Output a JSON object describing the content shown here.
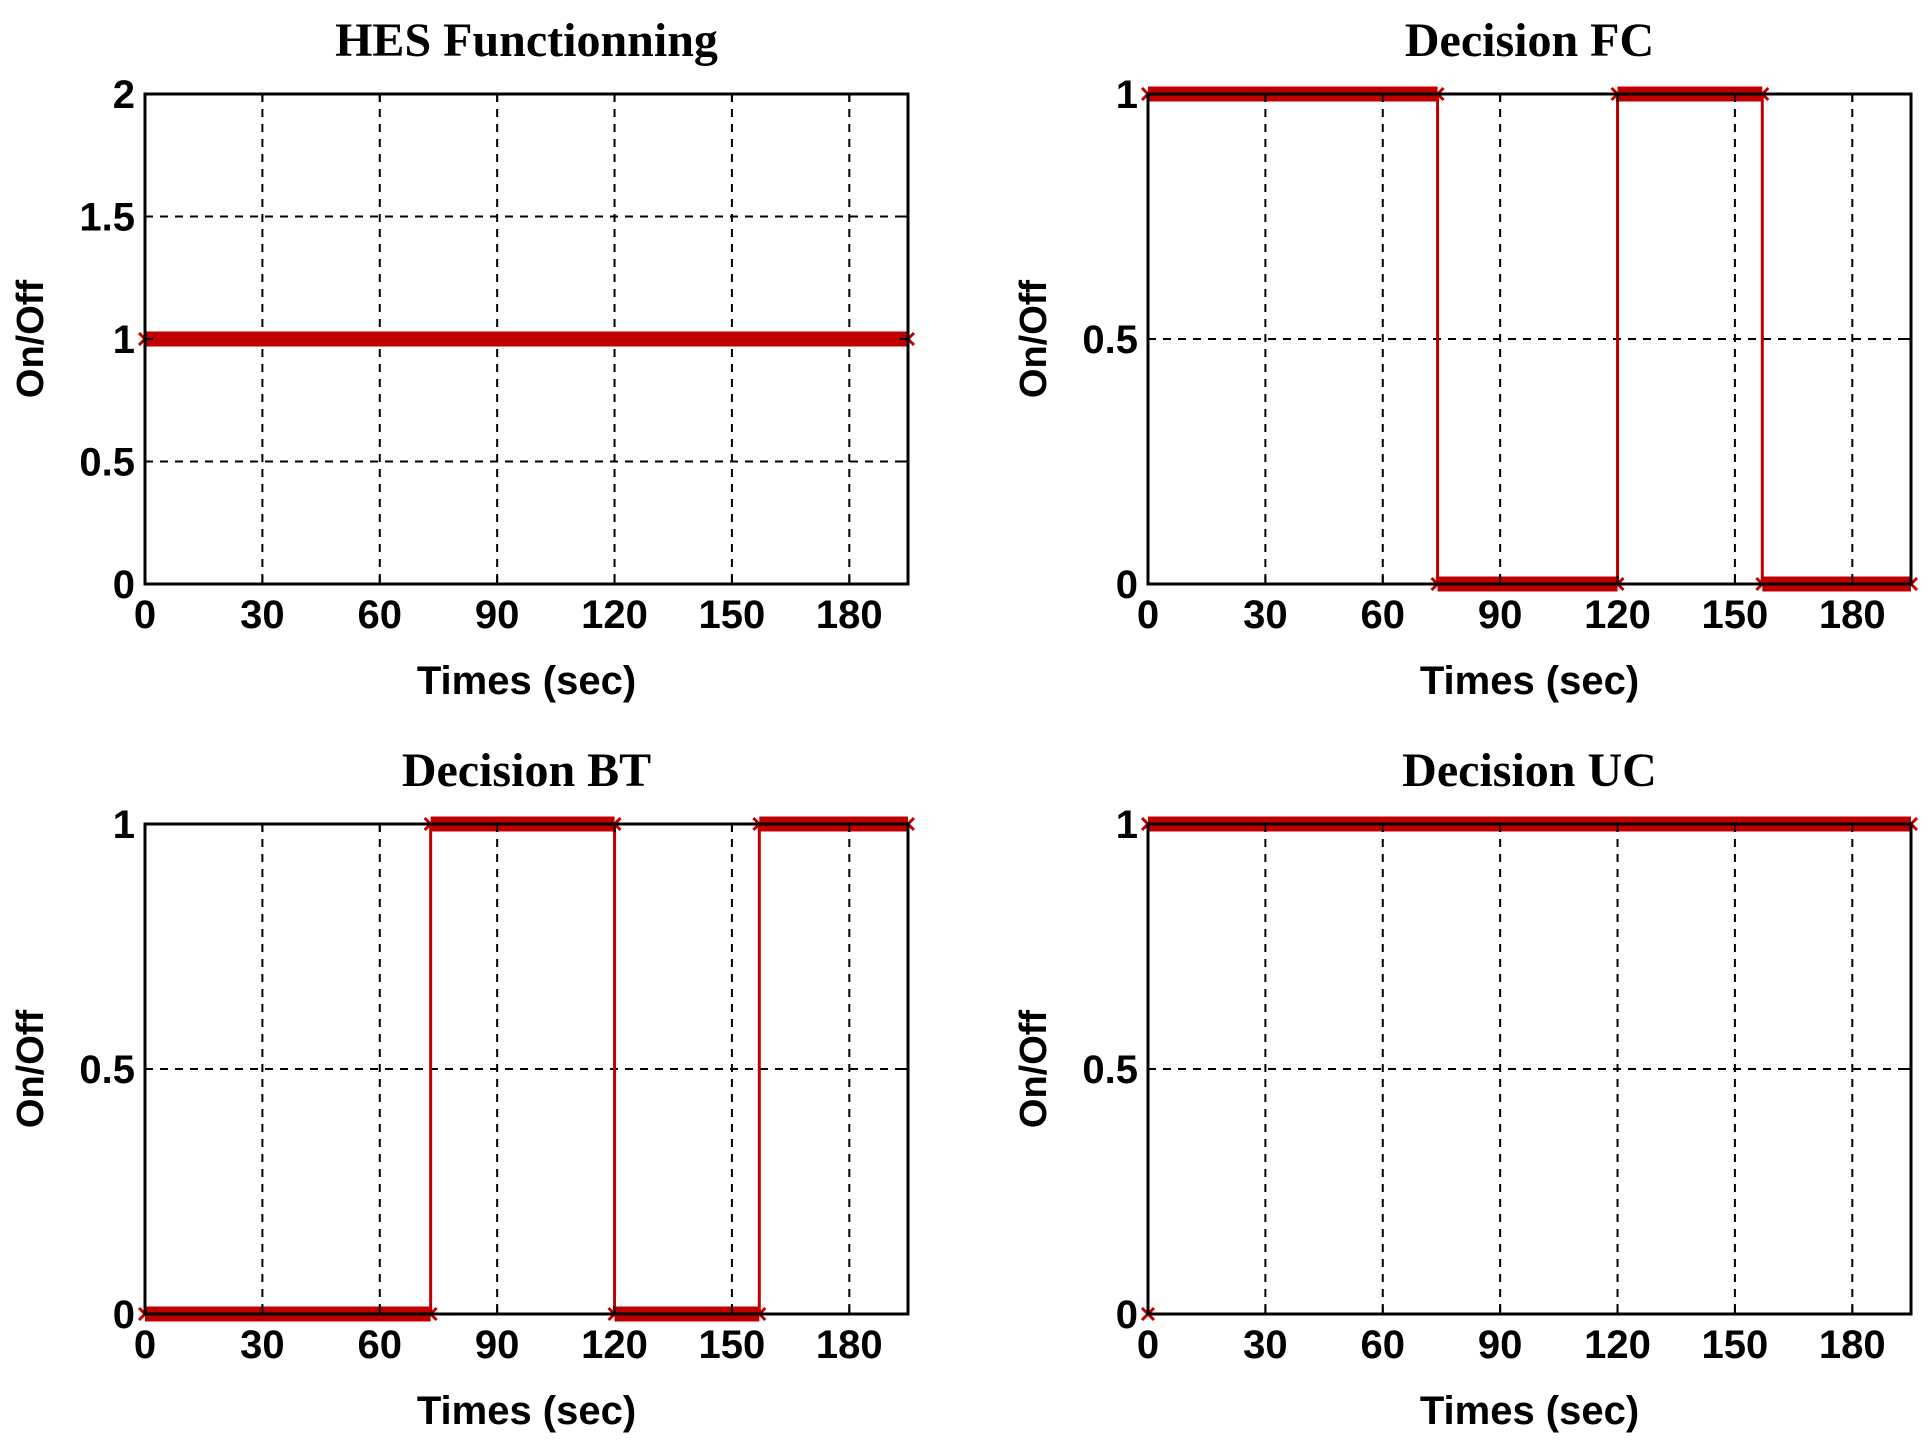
{
  "chart_data": [
    {
      "type": "line",
      "title": "HES Functionning",
      "xlabel": "Times (sec)",
      "ylabel": "On/Off",
      "xlim": [
        0,
        195
      ],
      "ylim": [
        0,
        2
      ],
      "xticks": [
        0,
        30,
        60,
        90,
        120,
        150,
        180
      ],
      "xtick_labels": [
        "0",
        "30",
        "60",
        "90",
        "120",
        "150",
        "180"
      ],
      "yticks": [
        0,
        0.5,
        1,
        1.5,
        2
      ],
      "ytick_labels": [
        "0",
        "0.5",
        "1",
        "1.5",
        "2"
      ],
      "grid": true,
      "color": "#c00000",
      "series": [
        {
          "name": "HES",
          "x": [
            0,
            195
          ],
          "y": [
            1,
            1
          ]
        }
      ]
    },
    {
      "type": "line",
      "title": "Decision FC",
      "xlabel": "Times (sec)",
      "ylabel": "On/Off",
      "xlim": [
        0,
        195
      ],
      "ylim": [
        0,
        1
      ],
      "xticks": [
        0,
        30,
        60,
        90,
        120,
        150,
        180
      ],
      "xtick_labels": [
        "0",
        "30",
        "60",
        "90",
        "120",
        "150",
        "180"
      ],
      "yticks": [
        0,
        0.5,
        1
      ],
      "ytick_labels": [
        "0",
        "0.5",
        "1"
      ],
      "grid": true,
      "color": "#c00000",
      "series": [
        {
          "name": "FC",
          "x": [
            0,
            74,
            74,
            120,
            120,
            157,
            157,
            195
          ],
          "y": [
            1,
            1,
            0,
            0,
            1,
            1,
            0,
            0
          ]
        }
      ]
    },
    {
      "type": "line",
      "title": "Decision BT",
      "xlabel": "Times (sec)",
      "ylabel": "On/Off",
      "xlim": [
        0,
        195
      ],
      "ylim": [
        0,
        1
      ],
      "xticks": [
        0,
        30,
        60,
        90,
        120,
        150,
        180
      ],
      "xtick_labels": [
        "0",
        "30",
        "60",
        "90",
        "120",
        "150",
        "180"
      ],
      "yticks": [
        0,
        0.5,
        1
      ],
      "ytick_labels": [
        "0",
        "0.5",
        "1"
      ],
      "grid": true,
      "color": "#c00000",
      "series": [
        {
          "name": "BT",
          "x": [
            0,
            73,
            73,
            120,
            120,
            157,
            157,
            195
          ],
          "y": [
            0,
            0,
            1,
            1,
            0,
            0,
            1,
            1
          ]
        }
      ]
    },
    {
      "type": "line",
      "title": "Decision UC",
      "xlabel": "Times (sec)",
      "ylabel": "On/Off",
      "xlim": [
        0,
        195
      ],
      "ylim": [
        0,
        1
      ],
      "xticks": [
        0,
        30,
        60,
        90,
        120,
        150,
        180
      ],
      "xtick_labels": [
        "0",
        "30",
        "60",
        "90",
        "120",
        "150",
        "180"
      ],
      "yticks": [
        0,
        0.5,
        1
      ],
      "ytick_labels": [
        "0",
        "0.5",
        "1"
      ],
      "grid": true,
      "color": "#c00000",
      "series": [
        {
          "name": "UC",
          "x": [
            0,
            0,
            195
          ],
          "y": [
            0,
            1,
            1
          ]
        }
      ]
    }
  ]
}
